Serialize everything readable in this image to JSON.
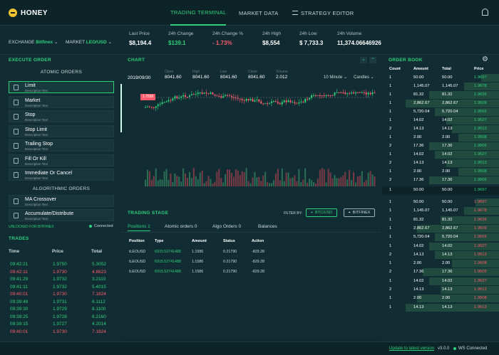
{
  "app": {
    "logo": "HONEY"
  },
  "nav": {
    "terminal": "TRADING TERMINAL",
    "market": "MARKET DATA",
    "strategy": "STRATEGY EDITOR"
  },
  "exchange": {
    "label": "EXCHANGE",
    "value": "Bitfinex",
    "market_label": "MARKET",
    "market_value": "LEO/USD"
  },
  "tickers": [
    {
      "label": "Last Price",
      "value": "$8,194.4"
    },
    {
      "label": "24h Change",
      "value": "$139.1"
    },
    {
      "label": "24h Change %",
      "value": "- 1.73%"
    },
    {
      "label": "24h High",
      "value": "$8,554"
    },
    {
      "label": "24h Low",
      "value": "$ 7,733.3"
    },
    {
      "label": "24h Volume",
      "value": "11,374.06646926"
    }
  ],
  "execute": {
    "title": "EXECUTE ORDER",
    "atomic": "ATOMIC ORDERS",
    "algorithmic": "ALGORITHMIC ORDERS",
    "orders": [
      {
        "name": "Limit",
        "desc": "Description Text"
      },
      {
        "name": "Market",
        "desc": "Description Text"
      },
      {
        "name": "Stop",
        "desc": "Description Text"
      },
      {
        "name": "Stop Limit",
        "desc": "Description Text"
      },
      {
        "name": "Trailing Stop",
        "desc": "Description Text"
      },
      {
        "name": "Fill Or Kill",
        "desc": "Description Text"
      },
      {
        "name": "Immediate Or Cancel",
        "desc": "Description Text"
      }
    ],
    "algos": [
      {
        "name": "MA Crossover",
        "desc": "Description Text"
      },
      {
        "name": "Accumulate/Distribute",
        "desc": "Description Text"
      }
    ],
    "unlocked": "UNLOCKED FOR BITFINEX",
    "connected": "Connected"
  },
  "trades": {
    "title": "TRADES",
    "headers": [
      "Time",
      "Price",
      "Total"
    ],
    "rows": [
      {
        "time": "09:42:21",
        "price": "1.9750",
        "total": "5.3052",
        "side": "buy"
      },
      {
        "time": "09:42:11",
        "price": "1.9730",
        "total": "4.8623",
        "side": "sell"
      },
      {
        "time": "09:41:29",
        "price": "1.9732",
        "total": "3.2110",
        "side": "buy"
      },
      {
        "time": "09:41:11",
        "price": "1.9732",
        "total": "5.4015",
        "side": "buy"
      },
      {
        "time": "09:40:01",
        "price": "1.9730",
        "total": "7.1824",
        "side": "sell"
      },
      {
        "time": "09:39:49",
        "price": "1.9731",
        "total": "6.1112",
        "side": "buy"
      },
      {
        "time": "09:39:30",
        "price": "1.9729",
        "total": "8.1100",
        "side": "buy"
      },
      {
        "time": "09:39:25",
        "price": "1.9728",
        "total": "6.2160",
        "side": "buy"
      },
      {
        "time": "09:39:15",
        "price": "1.9727",
        "total": "4.2014",
        "side": "buy"
      },
      {
        "time": "09:40:01",
        "price": "1.9730",
        "total": "7.1824",
        "side": "sell"
      }
    ]
  },
  "chart": {
    "title": "CHART",
    "date": "2019/09/30",
    "ohlcv": [
      {
        "label": "Open",
        "value": "8041.60"
      },
      {
        "label": "High",
        "value": "8041.60"
      },
      {
        "label": "Low",
        "value": "8041.60"
      },
      {
        "label": "Close",
        "value": "8041.60"
      },
      {
        "label": "Volume",
        "value": "2.012"
      }
    ],
    "interval": "10 Minute",
    "style": "Candles",
    "price_tag": "1.7599"
  },
  "stage": {
    "title": "TRADING STAGE",
    "filter_label": "FILTER BY:",
    "filter1": "BTC/USD",
    "filter2": "BITFINEX",
    "tabs": [
      "Positions 1",
      "Atomic orders 0",
      "Algo Orders 0",
      "Balances"
    ],
    "headers": [
      "Position",
      "Type",
      "Amount",
      "Status",
      "Action"
    ],
    "rows": [
      {
        "position": "tLEOUSD",
        "type": "6915.52741488",
        "amount": "1.1586",
        "status": "0.21790",
        "action": "-829.28"
      },
      {
        "position": "tLEOUSD",
        "type": "6915.52741488",
        "amount": "1.1586",
        "status": "0.21790",
        "action": "-829.28"
      },
      {
        "position": "tLEOUSD",
        "type": "6915.52741488",
        "amount": "1.1586",
        "status": "0.21790",
        "action": "-829.28"
      }
    ]
  },
  "orderbook": {
    "title": "ORDER BOOK",
    "headers": [
      "Count",
      "Amount",
      "Total",
      "Price"
    ],
    "bids": [
      {
        "count": "1",
        "amount": "50.00",
        "total": "50.00",
        "price": "1.9697",
        "depth": 0.15
      },
      {
        "count": "1",
        "amount": "1,145.07",
        "total": "1,145.07",
        "price": "1.9678",
        "depth": 0.3
      },
      {
        "count": "1",
        "amount": "81.32",
        "total": "81.32",
        "price": "1.9635",
        "depth": 0.6
      },
      {
        "count": "1",
        "amount": "2,862.67",
        "total": "2,862.67",
        "price": "1.9509",
        "depth": 0.8
      },
      {
        "count": "1",
        "amount": "5,720.04",
        "total": "5,720.04",
        "price": "1.9555",
        "depth": 0.55
      },
      {
        "count": "1",
        "amount": "14.02",
        "total": "14.02",
        "price": "1.9527",
        "depth": 0.45
      },
      {
        "count": "2",
        "amount": "14.13",
        "total": "14.13",
        "price": "1.9513",
        "depth": 0.4
      },
      {
        "count": "1",
        "amount": "2.00",
        "total": "2.00",
        "price": "1.9508",
        "depth": 0.35
      },
      {
        "count": "2",
        "amount": "17.36",
        "total": "17.36",
        "price": "1.9505",
        "depth": 0.6
      },
      {
        "count": "1",
        "amount": "14.02",
        "total": "14.02",
        "price": "1.9527",
        "depth": 0.55
      },
      {
        "count": "2",
        "amount": "14.13",
        "total": "14.13",
        "price": "1.9513",
        "depth": 0.45
      },
      {
        "count": "1",
        "amount": "2.00",
        "total": "2.00",
        "price": "1.9508",
        "depth": 0.35
      },
      {
        "count": "2",
        "amount": "17.36",
        "total": "17.36",
        "price": "1.9505",
        "depth": 0.6
      }
    ],
    "spread": {
      "count": "1",
      "amount": "50.00",
      "total": "50.00",
      "price": "1.9697"
    },
    "asks": [
      {
        "count": "1",
        "amount": "50.00",
        "total": "50.00",
        "price": "1.9697",
        "depth": 0.2
      },
      {
        "count": "1",
        "amount": "1,145.07",
        "total": "1,145.07",
        "price": "1.9678",
        "depth": 0.3
      },
      {
        "count": "1",
        "amount": "81.32",
        "total": "81.32",
        "price": "1.9635",
        "depth": 0.5
      },
      {
        "count": "1",
        "amount": "2,862.67",
        "total": "2,862.67",
        "price": "1.9509",
        "depth": 0.7
      },
      {
        "count": "1",
        "amount": "5,720.04",
        "total": "5,720.04",
        "price": "1.9555",
        "depth": 0.55
      },
      {
        "count": "1",
        "amount": "14.02",
        "total": "14.02",
        "price": "1.9527",
        "depth": 0.6
      },
      {
        "count": "2",
        "amount": "14.13",
        "total": "14.13",
        "price": "1.9513",
        "depth": 0.55
      },
      {
        "count": "1",
        "amount": "2.00",
        "total": "2.00",
        "price": "1.9508",
        "depth": 0.4
      },
      {
        "count": "2",
        "amount": "17.36",
        "total": "17.36",
        "price": "1.9505",
        "depth": 0.65
      },
      {
        "count": "1",
        "amount": "14.02",
        "total": "14.02",
        "price": "1.9527",
        "depth": 0.6
      },
      {
        "count": "2",
        "amount": "14.13",
        "total": "14.13",
        "price": "1.9513",
        "depth": 0.5
      },
      {
        "count": "1",
        "amount": "2.00",
        "total": "2.00",
        "price": "1.9508",
        "depth": 0.7
      },
      {
        "count": "1",
        "amount": "14.13",
        "total": "14.13",
        "price": "1.9513",
        "depth": 0.8
      }
    ]
  },
  "footer": {
    "update": "Update to latest version",
    "version": "v3.0.0",
    "ws": "WS Connected"
  },
  "colors": {
    "green": "#2fd07a",
    "red": "#ff5b6b",
    "bg": "#0f2a30"
  }
}
